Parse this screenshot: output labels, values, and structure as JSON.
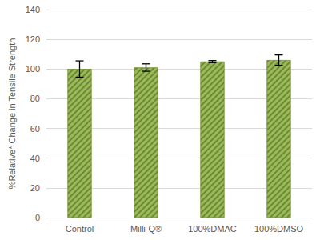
{
  "chart_data": {
    "type": "bar",
    "y_label": "%Relative* Change in Tensile Strength",
    "categories": [
      "Control",
      "Milli-Q®",
      "100%DMAC",
      "100%DMSO"
    ],
    "values": [
      100,
      101,
      105,
      106
    ],
    "errors": [
      5.5,
      2.5,
      0.7,
      3.5
    ],
    "color": "#9bbb59",
    "ylim": [
      0,
      140
    ],
    "yticks": [
      0,
      20,
      40,
      60,
      80,
      100,
      120,
      140
    ],
    "grid": true
  }
}
